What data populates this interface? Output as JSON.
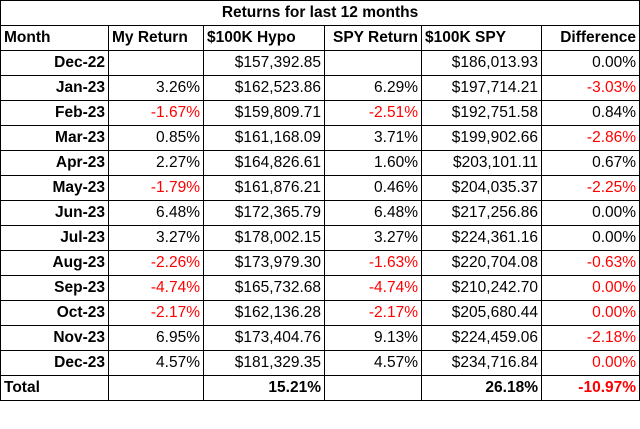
{
  "title": "Returns for last 12 months",
  "headers": [
    "Month",
    "My Return",
    "$100K Hypo",
    "SPY Return",
    "$100K SPY",
    "Difference"
  ],
  "rows": [
    {
      "month": "Dec-22",
      "my_return": "",
      "hypo": "$157,392.85",
      "spy_return": "",
      "spy": "$186,013.93",
      "difference": "0.00%",
      "my_neg": false,
      "spy_neg": false,
      "diff_neg": false
    },
    {
      "month": "Jan-23",
      "my_return": "3.26%",
      "hypo": "$162,523.86",
      "spy_return": "6.29%",
      "spy": "$197,714.21",
      "difference": "-3.03%",
      "my_neg": false,
      "spy_neg": false,
      "diff_neg": true
    },
    {
      "month": "Feb-23",
      "my_return": "-1.67%",
      "hypo": "$159,809.71",
      "spy_return": "-2.51%",
      "spy": "$192,751.58",
      "difference": "0.84%",
      "my_neg": true,
      "spy_neg": true,
      "diff_neg": false
    },
    {
      "month": "Mar-23",
      "my_return": "0.85%",
      "hypo": "$161,168.09",
      "spy_return": "3.71%",
      "spy": "$199,902.66",
      "difference": "-2.86%",
      "my_neg": false,
      "spy_neg": false,
      "diff_neg": true
    },
    {
      "month": "Apr-23",
      "my_return": "2.27%",
      "hypo": "$164,826.61",
      "spy_return": "1.60%",
      "spy": "$203,101.11",
      "difference": "0.67%",
      "my_neg": false,
      "spy_neg": false,
      "diff_neg": false
    },
    {
      "month": "May-23",
      "my_return": "-1.79%",
      "hypo": "$161,876.21",
      "spy_return": "0.46%",
      "spy": "$204,035.37",
      "difference": "-2.25%",
      "my_neg": true,
      "spy_neg": false,
      "diff_neg": true
    },
    {
      "month": "Jun-23",
      "my_return": "6.48%",
      "hypo": "$172,365.79",
      "spy_return": "6.48%",
      "spy": "$217,256.86",
      "difference": "0.00%",
      "my_neg": false,
      "spy_neg": false,
      "diff_neg": false
    },
    {
      "month": "Jul-23",
      "my_return": "3.27%",
      "hypo": "$178,002.15",
      "spy_return": "3.27%",
      "spy": "$224,361.16",
      "difference": "0.00%",
      "my_neg": false,
      "spy_neg": false,
      "diff_neg": false
    },
    {
      "month": "Aug-23",
      "my_return": "-2.26%",
      "hypo": "$173,979.30",
      "spy_return": "-1.63%",
      "spy": "$220,704.08",
      "difference": "-0.63%",
      "my_neg": true,
      "spy_neg": true,
      "diff_neg": true
    },
    {
      "month": "Sep-23",
      "my_return": "-4.74%",
      "hypo": "$165,732.68",
      "spy_return": "-4.74%",
      "spy": "$210,242.70",
      "difference": "0.00%",
      "my_neg": true,
      "spy_neg": true,
      "diff_neg": true
    },
    {
      "month": "Oct-23",
      "my_return": "-2.17%",
      "hypo": "$162,136.28",
      "spy_return": "-2.17%",
      "spy": "$205,680.44",
      "difference": "0.00%",
      "my_neg": true,
      "spy_neg": true,
      "diff_neg": true
    },
    {
      "month": "Nov-23",
      "my_return": "6.95%",
      "hypo": "$173,404.76",
      "spy_return": "9.13%",
      "spy": "$224,459.06",
      "difference": "-2.18%",
      "my_neg": false,
      "spy_neg": false,
      "diff_neg": true
    },
    {
      "month": "Dec-23",
      "my_return": "4.57%",
      "hypo": "$181,329.35",
      "spy_return": "4.57%",
      "spy": "$234,716.84",
      "difference": "0.00%",
      "my_neg": false,
      "spy_neg": false,
      "diff_neg": true
    }
  ],
  "total": {
    "label": "Total",
    "hypo": "15.21%",
    "spy": "26.18%",
    "difference": "-10.97%",
    "diff_neg": true
  },
  "colors": {
    "negative": "#ff0000",
    "text": "#000000",
    "border": "#000000"
  }
}
